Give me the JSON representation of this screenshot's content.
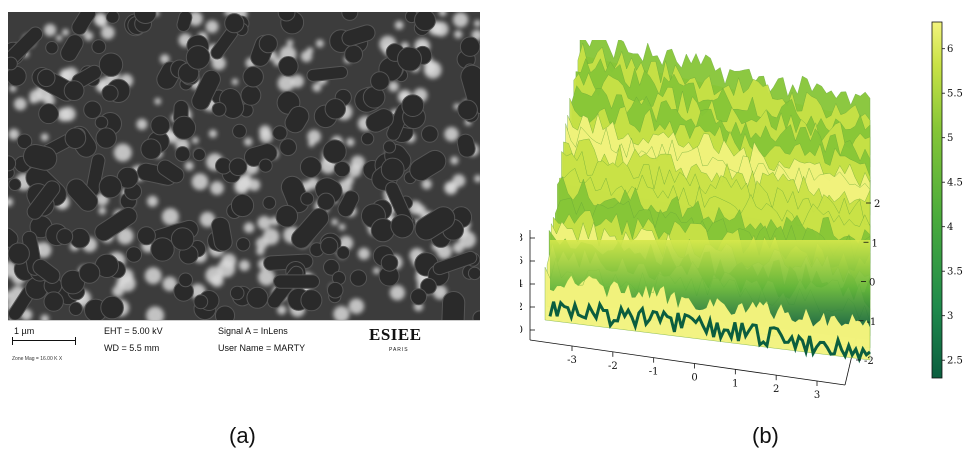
{
  "panel_a": {
    "label": "(a)",
    "scale_bar_label": "1 µm",
    "zone_mag": "Zone Mag = 16.00 K X",
    "eht": "EHT = 5.00 kV",
    "wd": "WD = 5.5 mm",
    "signal": "Signal A = InLens",
    "user": "User Name = MARTY",
    "logo": "ESIEE",
    "logo_sub": "PARIS"
  },
  "panel_b": {
    "label": "(b)",
    "z_ticks": [
      "0",
      "2",
      "4",
      "6",
      "8"
    ],
    "x_ticks": [
      "-3",
      "-2",
      "-1",
      "0",
      "1",
      "2",
      "3"
    ],
    "y_ticks": [
      "-2",
      "-1",
      "0",
      "1",
      "2"
    ],
    "colorbar_ticks": [
      "2.5",
      "3",
      "3.5",
      "4",
      "4.5",
      "5",
      "5.5",
      "6"
    ],
    "colormap": [
      "#0b5e3f",
      "#1f8a4c",
      "#4aab3c",
      "#86c637",
      "#c9e246",
      "#f2f37d"
    ]
  }
}
